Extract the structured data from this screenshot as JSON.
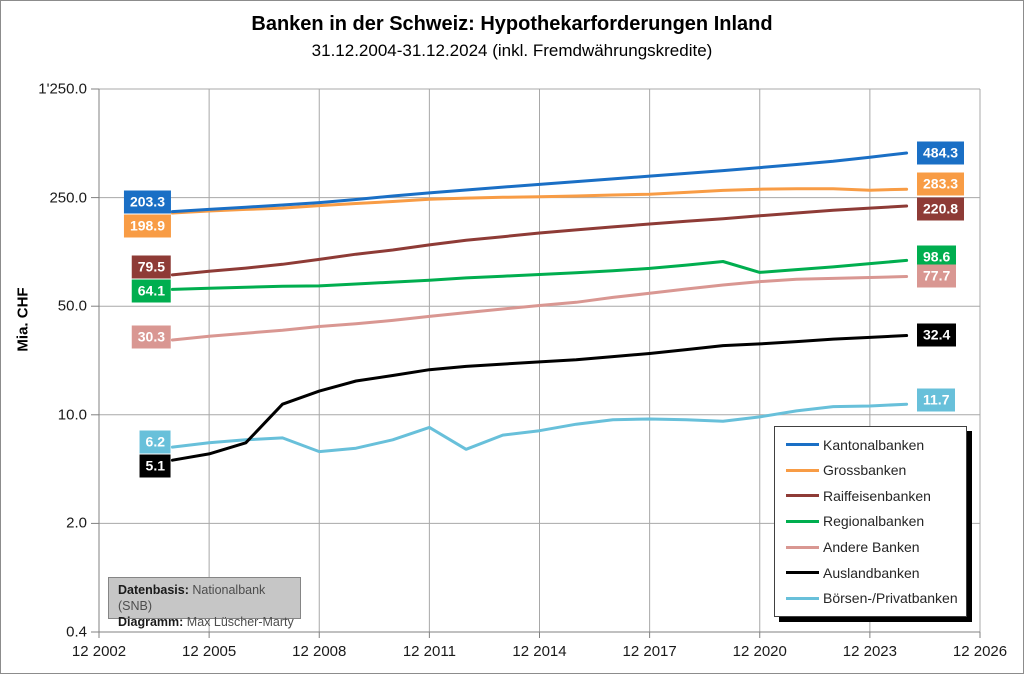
{
  "title": "Banken in der Schweiz: Hypothekarforderungen Inland",
  "subtitle": "31.12.2004-31.12.2024 (inkl. Fremdwährungskredite)",
  "y_axis_label": "Mia. CHF",
  "source_box": {
    "label1": "Datenbasis:",
    "value1": "Nationalbank (SNB)",
    "label2": "Diagramm:",
    "value2": "Max Lüscher-Marty"
  },
  "colors": {
    "grid": "#a8a8a8",
    "axis": "#808080",
    "legend_shadow": "#000000",
    "source_box_bg": "#c6c6c6"
  },
  "chart_data": {
    "type": "line",
    "y_scale": "log-base-5",
    "ylim": [
      0.4,
      1250
    ],
    "xlim_years": [
      2002,
      2026
    ],
    "ylabel": "Mia. CHF",
    "xlabel": "",
    "grid": true,
    "legend_position": "bottom-right",
    "x_ticks": {
      "years": [
        2002,
        2005,
        2008,
        2011,
        2014,
        2017,
        2020,
        2023,
        2026
      ],
      "labels": [
        "12 2002",
        "12 2005",
        "12 2008",
        "12 2011",
        "12 2014",
        "12 2017",
        "12 2020",
        "12 2023",
        "12 2026"
      ]
    },
    "y_ticks": {
      "values": [
        1250,
        250,
        50,
        10,
        2,
        0.4
      ],
      "labels": [
        "1'250.0",
        "250.0",
        "50.0",
        "10.0",
        "2.0",
        "0.4"
      ]
    },
    "x_years": [
      2004,
      2005,
      2006,
      2007,
      2008,
      2009,
      2010,
      2011,
      2012,
      2013,
      2014,
      2015,
      2016,
      2017,
      2018,
      2019,
      2020,
      2021,
      2022,
      2023,
      2024
    ],
    "series": [
      {
        "name": "Kantonalbanken",
        "color": "#1a6fc5",
        "start_label": "203.3",
        "end_label": "484.3",
        "values": [
          203.3,
          210,
          217,
          224,
          232,
          243,
          256,
          268,
          280,
          292,
          304,
          317,
          330,
          344,
          358,
          373,
          390,
          408,
          428,
          455,
          484.3
        ]
      },
      {
        "name": "Grossbanken",
        "color": "#f89c45",
        "start_label": "198.9",
        "end_label": "283.3",
        "values": [
          198.9,
          205,
          210,
          214,
          222,
          229,
          236,
          244,
          248,
          251,
          253,
          256,
          260,
          263,
          270,
          278,
          283,
          285,
          285,
          279,
          283.3
        ]
      },
      {
        "name": "Raiffeisenbanken",
        "color": "#8e3b36",
        "start_label": "79.5",
        "end_label": "220.8",
        "values": [
          79.5,
          84,
          88,
          93,
          100,
          108,
          115,
          124,
          133,
          140,
          148,
          155,
          162,
          169,
          176,
          183,
          191,
          199,
          207,
          214,
          220.8
        ]
      },
      {
        "name": "Regionalbanken",
        "color": "#00ae4f",
        "start_label": "64.1",
        "end_label": "98.6",
        "values": [
          64.1,
          65.2,
          66.3,
          67.2,
          67.5,
          69.5,
          71.5,
          73.5,
          76,
          78,
          80,
          82,
          84.5,
          87.5,
          92,
          97,
          82.5,
          86,
          89.5,
          94,
          98.6
        ]
      },
      {
        "name": "Andere Banken",
        "color": "#d99792",
        "start_label": "30.3",
        "end_label": "77.7",
        "values": [
          30.3,
          32,
          33.5,
          35,
          37,
          38.5,
          40.5,
          43,
          45.5,
          48,
          50.5,
          53,
          57,
          60.5,
          64.5,
          68.5,
          72,
          74.5,
          75.5,
          76.5,
          77.7
        ]
      },
      {
        "name": "Auslandbanken",
        "color": "#000000",
        "start_label": "5.1",
        "end_label": "32.4",
        "values": [
          5.1,
          5.6,
          6.6,
          11.7,
          14.2,
          16.5,
          17.9,
          19.5,
          20.5,
          21.2,
          21.9,
          22.6,
          23.7,
          24.8,
          26.3,
          27.9,
          28.6,
          29.6,
          30.7,
          31.5,
          32.4
        ]
      },
      {
        "name": "Börsen-/Privatbanken",
        "color": "#68c0da",
        "start_label": "6.2",
        "end_label": "11.7",
        "values": [
          6.2,
          6.6,
          6.9,
          7.1,
          5.8,
          6.1,
          6.9,
          8.3,
          6.0,
          7.4,
          7.9,
          8.7,
          9.3,
          9.4,
          9.3,
          9.1,
          9.7,
          10.6,
          11.3,
          11.4,
          11.7
        ]
      }
    ]
  }
}
